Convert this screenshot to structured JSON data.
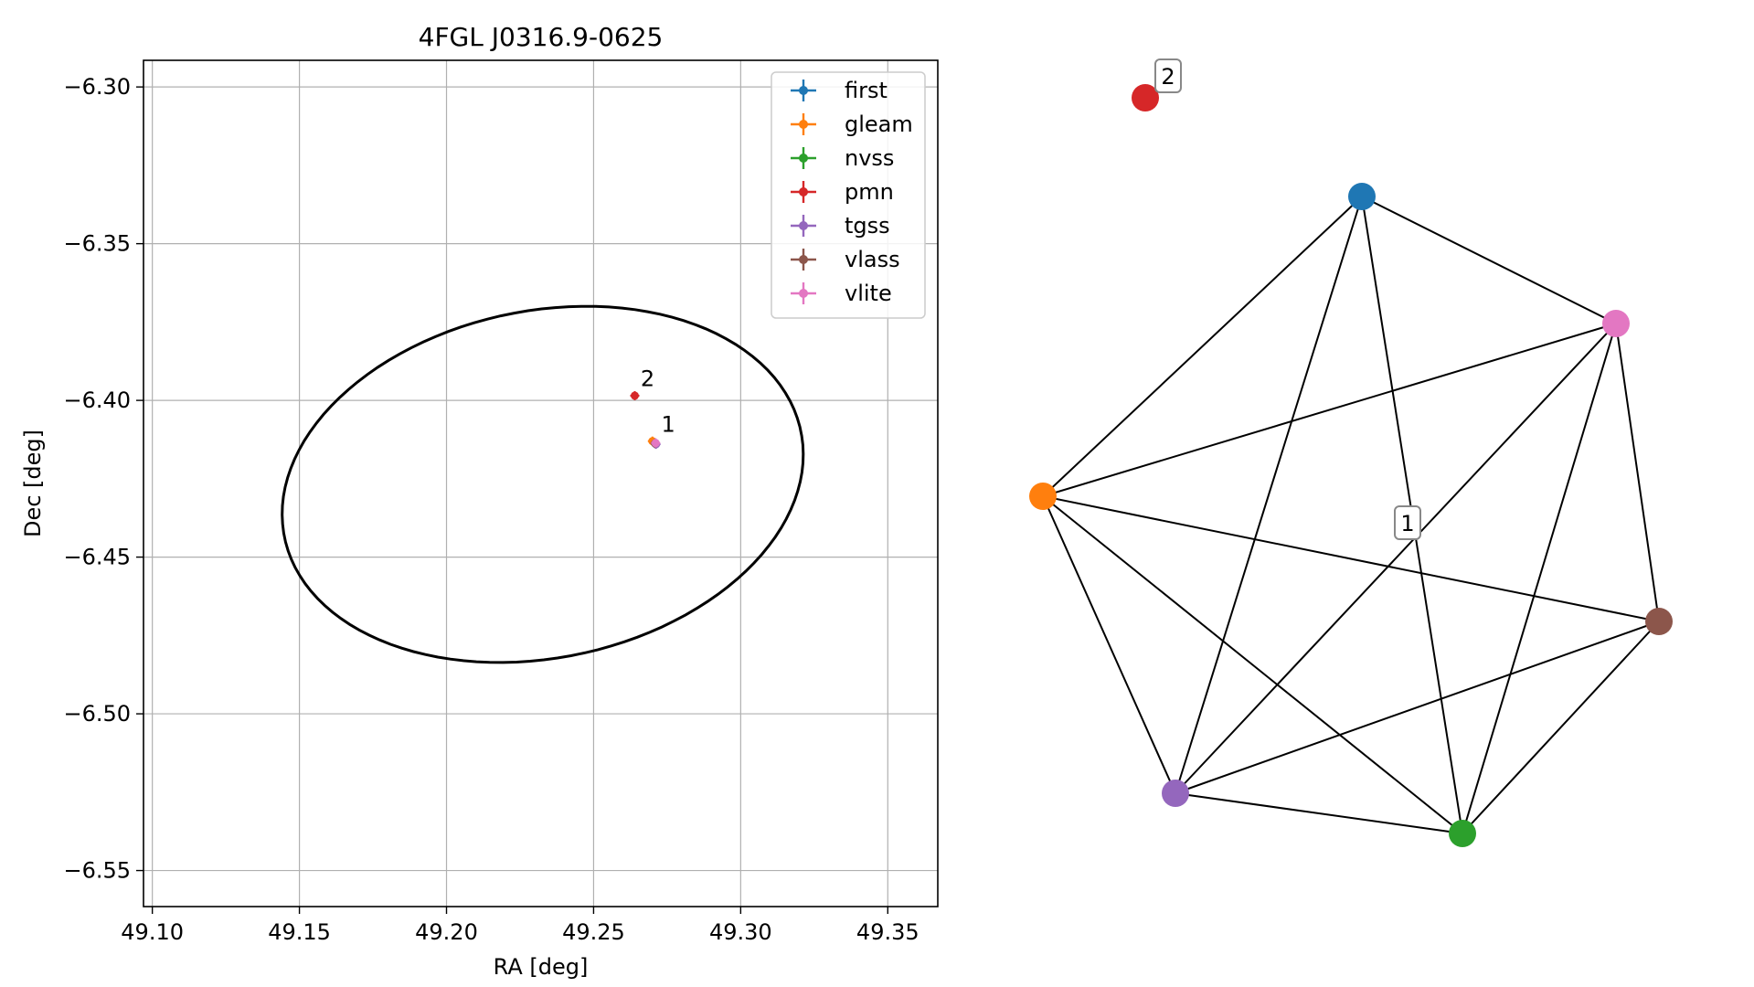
{
  "chart_data": [
    {
      "type": "scatter",
      "title": "4FGL J0316.9-0625",
      "xlabel": "RA [deg]",
      "ylabel": "Dec [deg]",
      "xlim": [
        49.097,
        49.367
      ],
      "ylim": [
        -6.5615,
        -6.2915
      ],
      "x_ticks": [
        49.1,
        49.15,
        49.2,
        49.25,
        49.3,
        49.35
      ],
      "x_tick_labels": [
        "49.10",
        "49.15",
        "49.20",
        "49.25",
        "49.30",
        "49.35"
      ],
      "y_ticks": [
        -6.3,
        -6.35,
        -6.4,
        -6.45,
        -6.5,
        -6.55
      ],
      "y_tick_labels": [
        "−6.30",
        "−6.35",
        "−6.40",
        "−6.45",
        "−6.50",
        "−6.55"
      ],
      "grid": true,
      "legend_position": "upper right",
      "series": [
        {
          "name": "first",
          "color": "#1f77b4",
          "x": [
            49.2708
          ],
          "y": [
            -6.4135
          ]
        },
        {
          "name": "gleam",
          "color": "#ff7f0e",
          "x": [
            49.27
          ],
          "y": [
            -6.413
          ]
        },
        {
          "name": "nvss",
          "color": "#2ca02c",
          "x": [
            49.271
          ],
          "y": [
            -6.4138
          ]
        },
        {
          "name": "pmn",
          "color": "#d62728",
          "x": [
            49.264
          ],
          "y": [
            -6.3985
          ]
        },
        {
          "name": "tgss",
          "color": "#9467bd",
          "x": [
            49.2712
          ],
          "y": [
            -6.414
          ]
        },
        {
          "name": "vlass",
          "color": "#8c564b",
          "x": [
            49.2709
          ],
          "y": [
            -6.4137
          ]
        },
        {
          "name": "vlite",
          "color": "#e377c2",
          "x": [
            49.2711
          ],
          "y": [
            -6.4136
          ]
        }
      ],
      "ellipse": {
        "center_x": 49.2327,
        "center_y": -6.4268,
        "semi_axis_x": 0.0894,
        "semi_axis_y": 0.0555,
        "angle_deg": 10,
        "color": "#000000"
      },
      "annotations": [
        {
          "text": "2",
          "x": 49.266,
          "y": -6.3955
        },
        {
          "text": "1",
          "x": 49.273,
          "y": -6.41
        }
      ]
    },
    {
      "type": "network",
      "nodes": [
        {
          "id": "first",
          "color": "#1f77b4"
        },
        {
          "id": "gleam",
          "color": "#ff7f0e"
        },
        {
          "id": "nvss",
          "color": "#2ca02c"
        },
        {
          "id": "pmn",
          "color": "#d62728"
        },
        {
          "id": "tgss",
          "color": "#9467bd"
        },
        {
          "id": "vlass",
          "color": "#8c564b"
        },
        {
          "id": "vlite",
          "color": "#e377c2"
        }
      ],
      "edges": [
        [
          "first",
          "vlite"
        ],
        [
          "first",
          "gleam"
        ],
        [
          "first",
          "tgss"
        ],
        [
          "first",
          "nvss"
        ],
        [
          "vlite",
          "gleam"
        ],
        [
          "vlite",
          "tgss"
        ],
        [
          "vlite",
          "nvss"
        ],
        [
          "vlite",
          "vlass"
        ],
        [
          "gleam",
          "tgss"
        ],
        [
          "gleam",
          "nvss"
        ],
        [
          "gleam",
          "vlass"
        ],
        [
          "tgss",
          "nvss"
        ],
        [
          "tgss",
          "vlass"
        ],
        [
          "nvss",
          "vlass"
        ]
      ],
      "group_labels": [
        {
          "text": "1",
          "group": "cluster"
        },
        {
          "text": "2",
          "group": "pmn"
        }
      ]
    }
  ]
}
